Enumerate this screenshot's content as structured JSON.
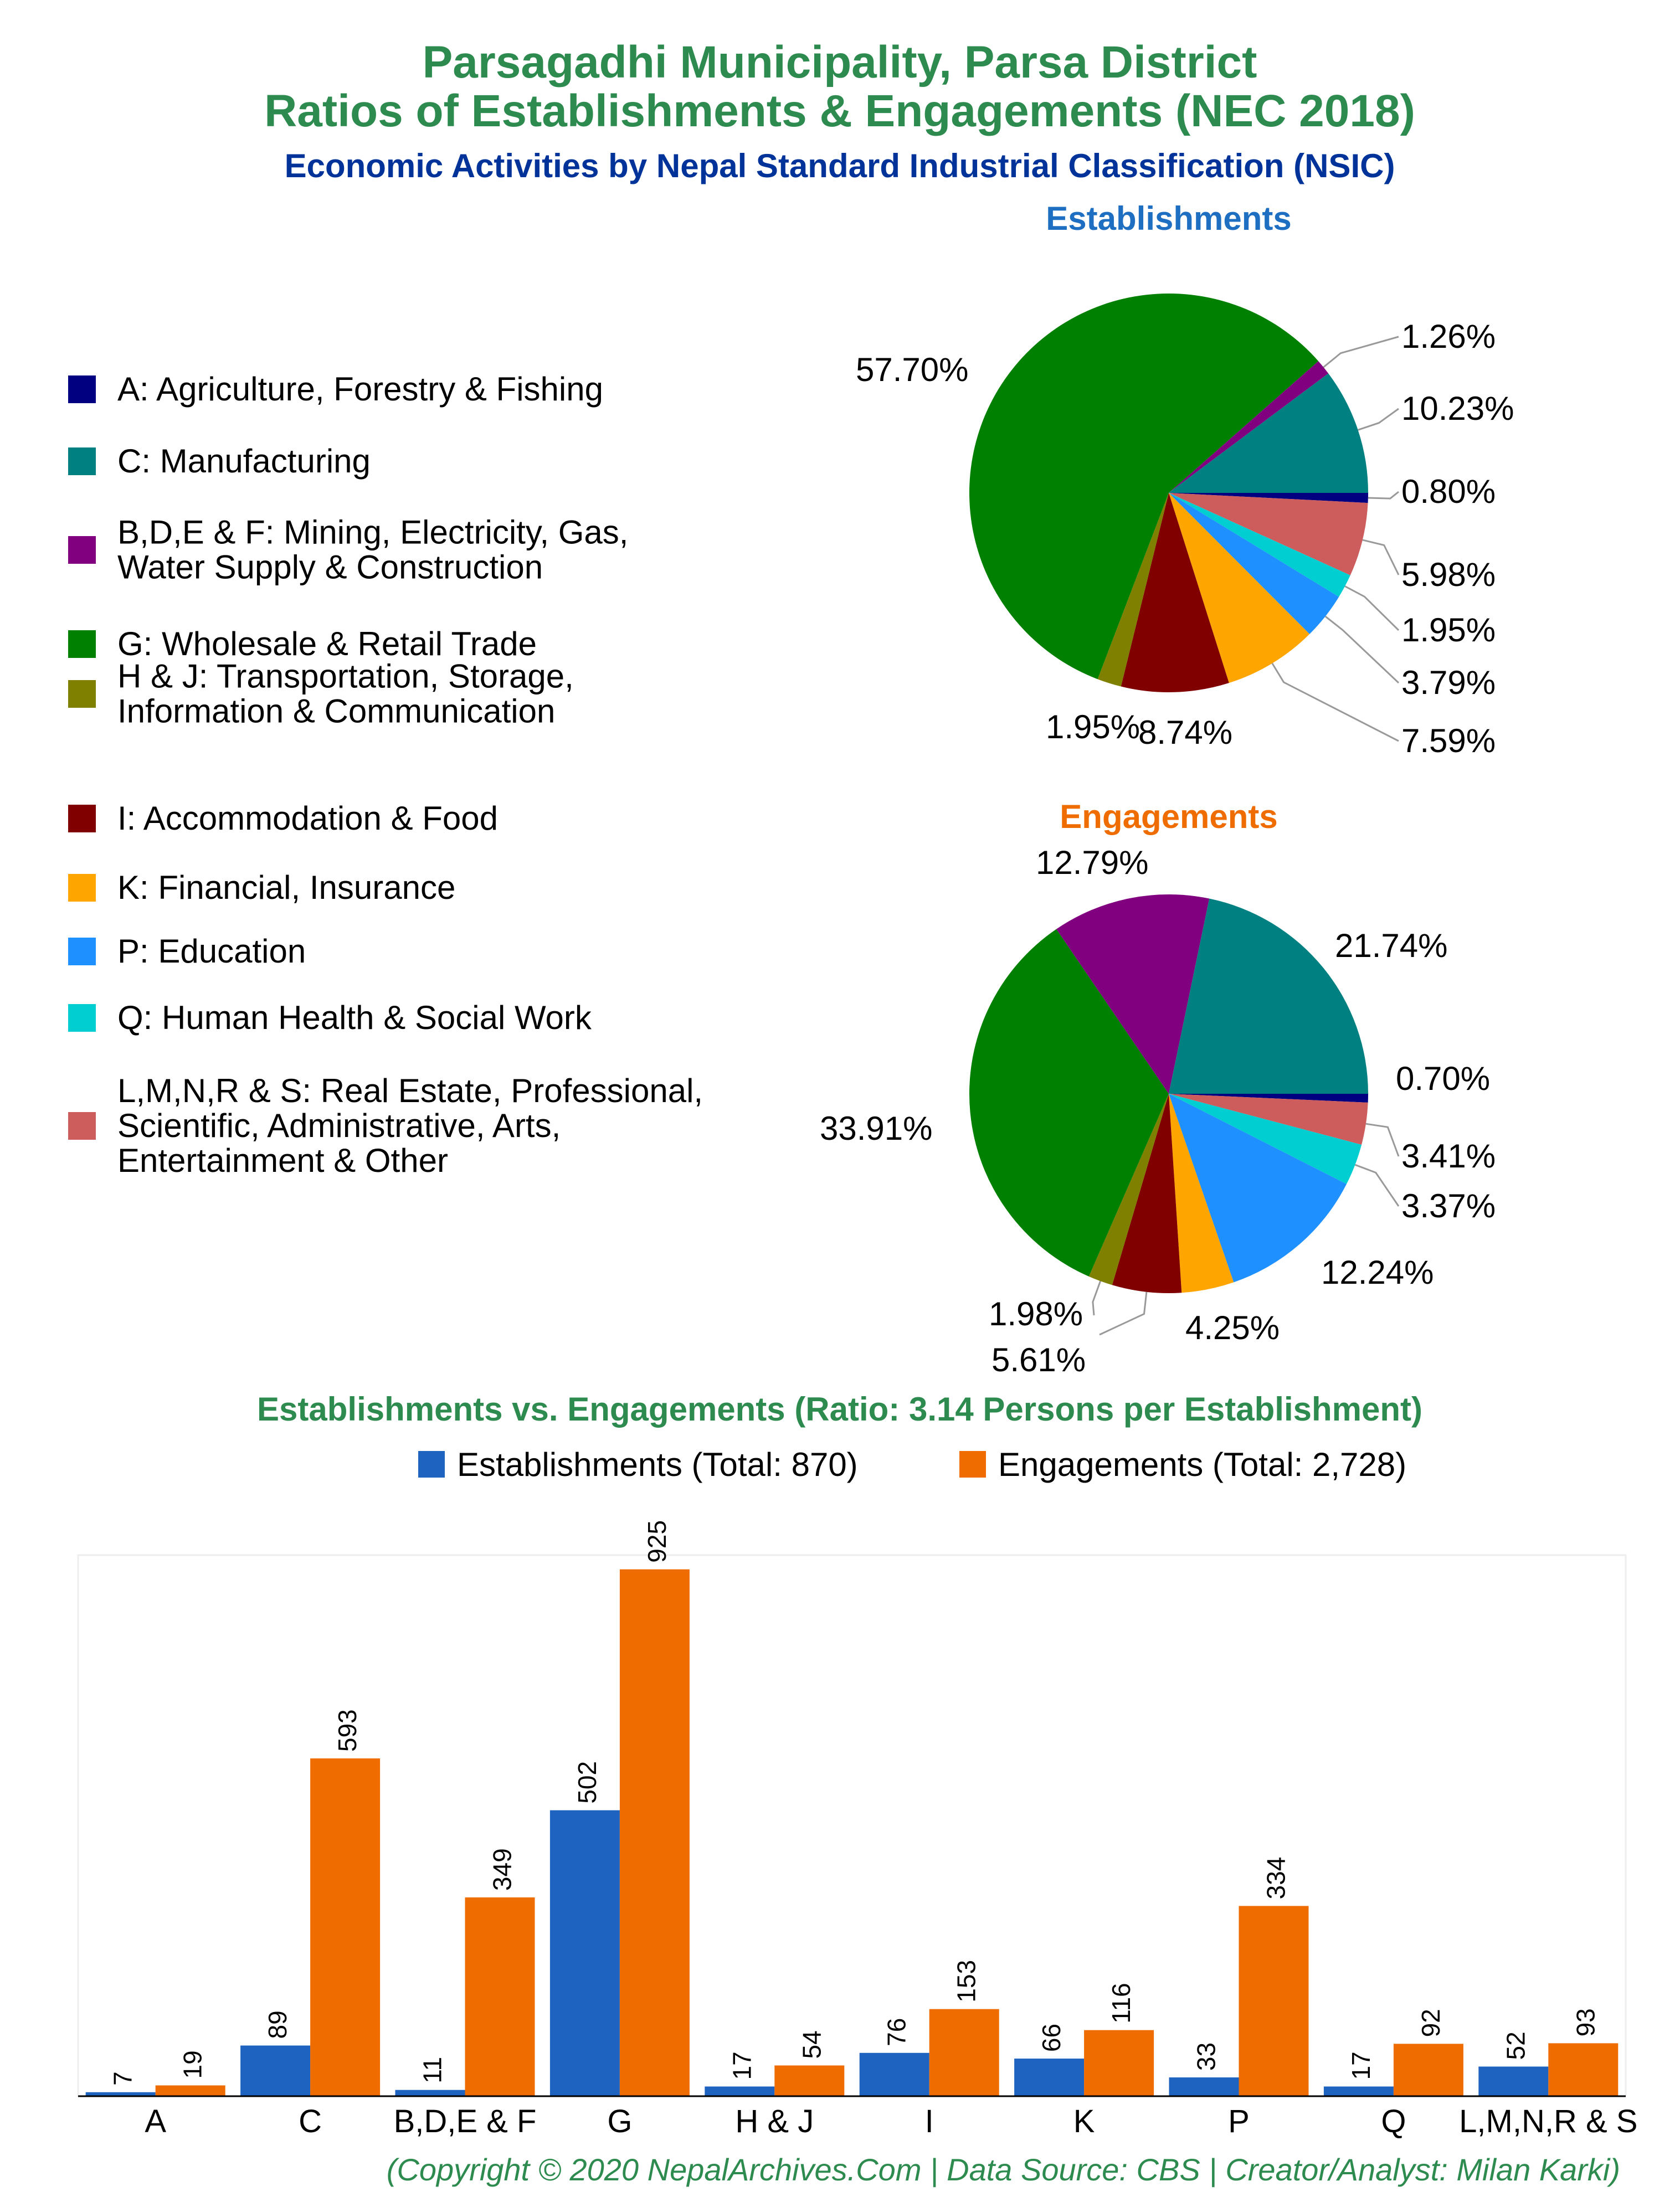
{
  "titles": {
    "line1": "Parsagadhi Municipality, Parsa District",
    "line2": "Ratios of Establishments & Engagements (NEC 2018)",
    "subtitle": "Economic Activities by Nepal Standard Industrial Classification (NSIC)",
    "establishments": "Establishments",
    "engagements": "Engagements",
    "bar_title": "Establishments vs. Engagements (Ratio: 3.14 Persons per Establishment)"
  },
  "colors": {
    "title_green": "#2e8b4f",
    "subtitle_navy": "#003399",
    "est_blue": "#1f63c0",
    "eng_orange": "#ef6c00"
  },
  "legend": [
    {
      "lines": [
        "A: Agriculture, Forestry & Fishing"
      ],
      "color": "#000080"
    },
    {
      "lines": [
        "C: Manufacturing"
      ],
      "color": "#008080"
    },
    {
      "lines": [
        "B,D,E & F: Mining, Electricity, Gas,",
        "Water Supply & Construction"
      ],
      "color": "#800080"
    },
    {
      "lines": [
        "G: Wholesale & Retail Trade"
      ],
      "color": "#008000"
    },
    {
      "lines": [
        "H & J: Transportation, Storage,",
        "Information & Communication"
      ],
      "color": "#808000"
    },
    {
      "lines": [
        "I: Accommodation & Food"
      ],
      "color": "#800000"
    },
    {
      "lines": [
        "K: Financial, Insurance"
      ],
      "color": "#ffa500"
    },
    {
      "lines": [
        "P: Education"
      ],
      "color": "#1e90ff"
    },
    {
      "lines": [
        "Q: Human Health & Social Work"
      ],
      "color": "#00ced1"
    },
    {
      "lines": [
        "L,M,N,R & S: Real Estate, Professional,",
        "Scientific, Administrative, Arts,",
        "Entertainment & Other"
      ],
      "color": "#cd5c5c"
    }
  ],
  "chart_data": [
    {
      "type": "pie",
      "title": "Establishments",
      "slices": [
        {
          "key": "A",
          "value": 0.8,
          "label": "0.80%"
        },
        {
          "key": "L,M,N,R & S",
          "value": 5.98,
          "label": "5.98%"
        },
        {
          "key": "Q",
          "value": 1.95,
          "label": "1.95%"
        },
        {
          "key": "P",
          "value": 3.79,
          "label": "3.79%"
        },
        {
          "key": "K",
          "value": 7.59,
          "label": "7.59%"
        },
        {
          "key": "I",
          "value": 8.74,
          "label": "8.74%"
        },
        {
          "key": "H & J",
          "value": 1.95,
          "label": "1.95%"
        },
        {
          "key": "G",
          "value": 57.7,
          "label": "57.70%"
        },
        {
          "key": "B,D,E & F",
          "value": 1.26,
          "label": "1.26%"
        },
        {
          "key": "C",
          "value": 10.23,
          "label": "10.23%"
        }
      ]
    },
    {
      "type": "pie",
      "title": "Engagements",
      "slices": [
        {
          "key": "A",
          "value": 0.7,
          "label": "0.70%"
        },
        {
          "key": "L,M,N,R & S",
          "value": 3.41,
          "label": "3.41%"
        },
        {
          "key": "Q",
          "value": 3.37,
          "label": "3.37%"
        },
        {
          "key": "P",
          "value": 12.24,
          "label": "12.24%"
        },
        {
          "key": "K",
          "value": 4.25,
          "label": "4.25%"
        },
        {
          "key": "I",
          "value": 5.61,
          "label": "5.61%"
        },
        {
          "key": "H & J",
          "value": 1.98,
          "label": "1.98%"
        },
        {
          "key": "G",
          "value": 33.91,
          "label": "33.91%"
        },
        {
          "key": "B,D,E & F",
          "value": 12.79,
          "label": "12.79%"
        },
        {
          "key": "C",
          "value": 21.74,
          "label": "21.74%"
        }
      ]
    },
    {
      "type": "bar",
      "title": "Establishments vs. Engagements (Ratio: 3.14 Persons per Establishment)",
      "categories": [
        "A",
        "C",
        "B,D,E & F",
        "G",
        "H & J",
        "I",
        "K",
        "P",
        "Q",
        "L,M,N,R & S"
      ],
      "series": [
        {
          "name": "Establishments (Total: 870)",
          "values": [
            7,
            89,
            11,
            502,
            17,
            76,
            66,
            33,
            17,
            52
          ]
        },
        {
          "name": "Engagements (Total: 2,728)",
          "values": [
            19,
            593,
            349,
            925,
            54,
            153,
            116,
            334,
            92,
            93
          ]
        }
      ],
      "ylim": [
        0,
        950
      ],
      "legend": "top"
    }
  ],
  "footer": "(Copyright © 2020 NepalArchives.Com | Data Source: CBS | Creator/Analyst: Milan Karki)"
}
